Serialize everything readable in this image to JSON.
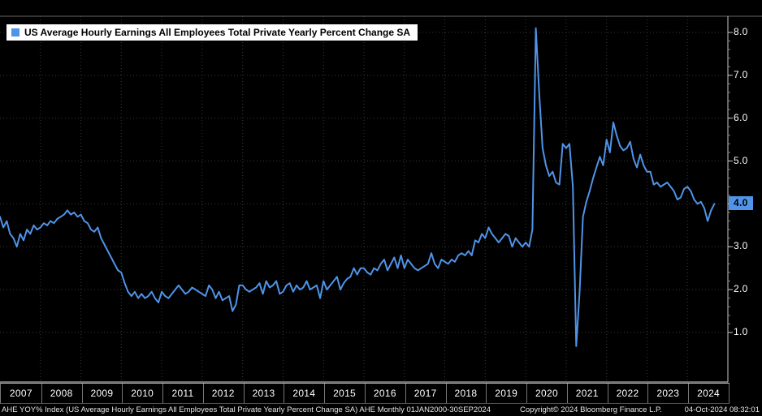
{
  "colors": {
    "background": "#000000",
    "line": "#4f94e8",
    "grid": "#3a3a3a",
    "axis": "#c8c8c8",
    "minor_tick": "#888888",
    "legend_bg": "#ffffff",
    "highlight_bg": "#4f94e8",
    "text": "#ffffff"
  },
  "legend": {
    "label": "US Average Hourly Earnings All Employees Total Private Yearly Percent Change SA"
  },
  "yaxis": {
    "tick_values": [
      8,
      7,
      6,
      5,
      4,
      3,
      2,
      1
    ],
    "tick_labels": [
      "8.0",
      "7.0",
      "6.0",
      "5.0",
      "4.0",
      "3.0",
      "2.0",
      "1.0"
    ],
    "highlight_label": "4.0"
  },
  "xaxis": {
    "years": [
      "2007",
      "2008",
      "2009",
      "2010",
      "2011",
      "2012",
      "2013",
      "2014",
      "2015",
      "2016",
      "2017",
      "2018",
      "2019",
      "2020",
      "2021",
      "2022",
      "2023",
      "2024"
    ],
    "range": [
      2007,
      2025
    ]
  },
  "footer": {
    "left": "AHE YOY% Index (US Average Hourly Earnings All Employees Total Private Yearly Percent Change SA) AHE Monthly 01JAN2000-30SEP2024",
    "copyright": "Copyright© 2024 Bloomberg Finance L.P.",
    "datetime": "04-Oct-2024 08:32:01"
  },
  "chart_data": {
    "type": "line",
    "title": "US Average Hourly Earnings All Employees Total Private Yearly Percent Change SA",
    "frequency": "monthly",
    "x_start": "2007-01",
    "x_end": "2024-09",
    "xlim": [
      2007,
      2025
    ],
    "ylim": [
      0,
      8.4
    ],
    "gridlines": [
      1,
      2,
      3,
      4,
      5,
      6,
      7,
      8
    ],
    "grid": "dotted",
    "legend_position": "top-left",
    "last_value": 4.0,
    "series": [
      {
        "name": "AHE YOY% Index",
        "values": [
          3.7,
          3.45,
          3.6,
          3.3,
          3.2,
          3.0,
          3.3,
          3.15,
          3.4,
          3.3,
          3.5,
          3.4,
          3.45,
          3.55,
          3.5,
          3.6,
          3.55,
          3.65,
          3.7,
          3.75,
          3.85,
          3.75,
          3.8,
          3.7,
          3.75,
          3.6,
          3.55,
          3.4,
          3.35,
          3.45,
          3.2,
          3.05,
          2.9,
          2.75,
          2.6,
          2.45,
          2.4,
          2.15,
          1.95,
          1.85,
          1.95,
          1.8,
          1.9,
          1.8,
          1.85,
          1.95,
          1.8,
          1.7,
          1.95,
          1.85,
          1.8,
          1.9,
          2.0,
          2.1,
          2.0,
          1.9,
          1.95,
          2.05,
          2.0,
          1.95,
          1.9,
          1.85,
          2.1,
          2.0,
          1.8,
          1.95,
          1.75,
          1.8,
          1.85,
          1.5,
          1.65,
          2.1,
          2.1,
          2.0,
          1.95,
          2.0,
          2.05,
          2.15,
          1.9,
          2.2,
          2.05,
          2.1,
          2.2,
          1.9,
          1.95,
          2.1,
          2.15,
          1.95,
          2.1,
          2.0,
          2.05,
          2.2,
          2.0,
          2.05,
          2.1,
          1.8,
          2.2,
          2.0,
          2.1,
          2.2,
          2.3,
          2.0,
          2.15,
          2.25,
          2.3,
          2.5,
          2.35,
          2.5,
          2.5,
          2.4,
          2.35,
          2.5,
          2.45,
          2.6,
          2.7,
          2.45,
          2.6,
          2.75,
          2.5,
          2.8,
          2.5,
          2.7,
          2.6,
          2.5,
          2.45,
          2.5,
          2.55,
          2.6,
          2.85,
          2.6,
          2.5,
          2.7,
          2.65,
          2.6,
          2.7,
          2.65,
          2.8,
          2.85,
          2.8,
          2.9,
          2.8,
          3.15,
          3.1,
          3.3,
          3.2,
          3.45,
          3.3,
          3.2,
          3.1,
          3.2,
          3.3,
          3.25,
          3.0,
          3.2,
          3.1,
          3.0,
          3.1,
          3.0,
          3.4,
          8.1,
          6.6,
          5.3,
          4.9,
          4.65,
          4.75,
          4.5,
          4.45,
          5.4,
          5.3,
          5.4,
          4.4,
          0.68,
          1.95,
          3.7,
          4.05,
          4.3,
          4.6,
          4.85,
          5.1,
          4.9,
          5.5,
          5.2,
          5.9,
          5.6,
          5.35,
          5.25,
          5.3,
          5.45,
          5.05,
          4.85,
          5.15,
          4.9,
          4.75,
          4.75,
          4.45,
          4.5,
          4.4,
          4.45,
          4.5,
          4.4,
          4.3,
          4.1,
          4.15,
          4.35,
          4.4,
          4.3,
          4.1,
          4.0,
          4.05,
          3.9,
          3.6,
          3.85,
          4.0
        ]
      }
    ]
  }
}
